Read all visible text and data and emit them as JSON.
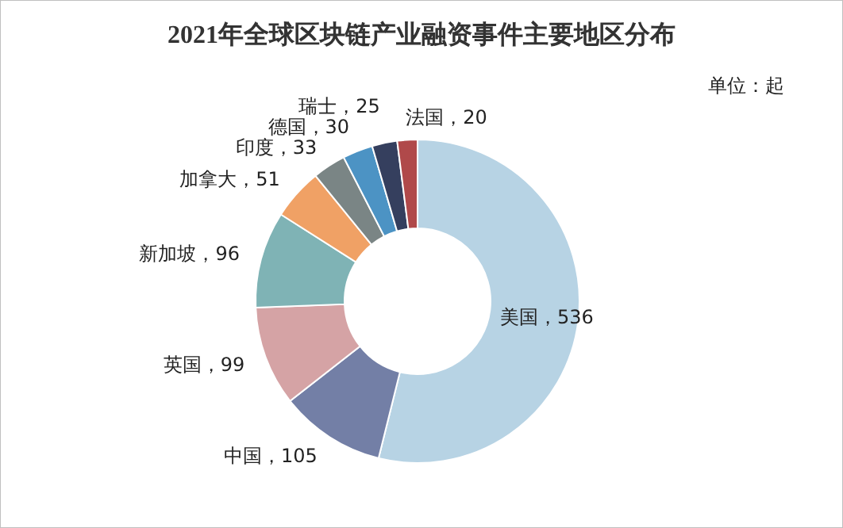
{
  "chart_data": {
    "type": "donut",
    "title": "2021年全球区块链产业融资事件主要地区分布",
    "categories": [
      "美国",
      "中国",
      "英国",
      "新加坡",
      "加拿大",
      "印度",
      "德国",
      "瑞士",
      "法国"
    ],
    "values": [
      536,
      105,
      99,
      96,
      51,
      33,
      30,
      25,
      20
    ],
    "colors": [
      "#b7d3e4",
      "#737fa6",
      "#d5a3a5",
      "#7fb3b5",
      "#f0a165",
      "#7a8585",
      "#4c93c4",
      "#353f5e",
      "#b0494a"
    ],
    "value_labels": [
      "，536",
      "，105",
      "，99",
      "，96",
      "，51",
      "，33",
      "，30",
      "，25",
      "，20"
    ],
    "legend": false,
    "annotations": [
      "单位：起"
    ]
  }
}
